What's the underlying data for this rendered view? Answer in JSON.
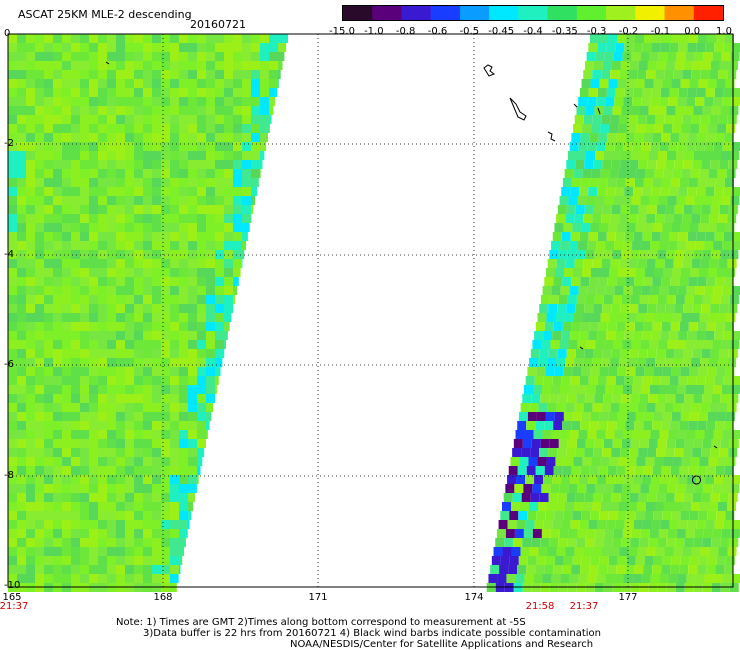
{
  "title": "ASCAT 25KM MLE-2 descending",
  "date": "20160721",
  "colorbar": {
    "labels": [
      "-15.0",
      "-1.0",
      "-0.8",
      "-0.6",
      "-0.5",
      "-0.45",
      "-0.4",
      "-0.35",
      "-0.3",
      "-0.2",
      "-0.1",
      "0.0",
      "1.0"
    ],
    "colors": [
      "#2a0a2a",
      "#5a007a",
      "#3a1ad0",
      "#1a3cff",
      "#0a9cff",
      "#00e8ff",
      "#20f0c0",
      "#30e060",
      "#60f030",
      "#a0f020",
      "#f0f000",
      "#ff9000",
      "#ff2000"
    ]
  },
  "map": {
    "y_ticks": [
      "0",
      "-2",
      "-4",
      "-6",
      "-8",
      "-10"
    ],
    "x_ticks": [
      "165",
      "168",
      "171",
      "174",
      "177"
    ],
    "time_labels": [
      "21:37",
      "21:58",
      "21:37"
    ]
  },
  "notes": {
    "line1": "Note: 1) Times are GMT 2)Times along bottom correspond to measurement at -5S",
    "line2": "3)Data buffer is 22 hrs from 20160721 4) Black wind barbs indicate possible contamination",
    "line3": "NOAA/NESDIS/Center for Satellite Applications and Research"
  }
}
